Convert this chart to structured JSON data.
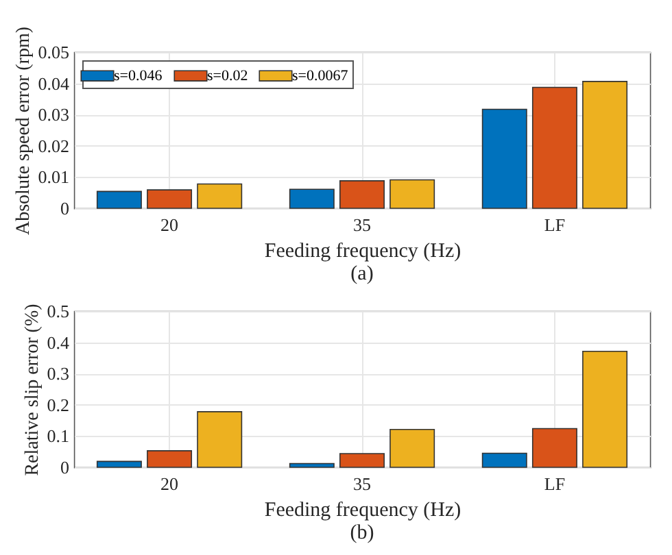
{
  "chart_data": [
    {
      "type": "bar",
      "xlabel": "Feeding frequency (Hz)",
      "ylabel": "Absolute speed error (rpm)",
      "categories": [
        "20",
        "35",
        "LF"
      ],
      "ylim": [
        0,
        0.05
      ],
      "yticks": [
        0,
        0.01,
        0.02,
        0.03,
        0.04,
        0.05
      ],
      "grid": true,
      "legend": "top left",
      "annotations": [
        "(a)"
      ],
      "series": [
        {
          "name": "s=0.046",
          "color": "#0072bd",
          "values": [
            0.0054,
            0.0061,
            0.0317
          ]
        },
        {
          "name": "s=0.02",
          "color": "#d95319",
          "values": [
            0.0059,
            0.0088,
            0.0387
          ]
        },
        {
          "name": "s=0.0067",
          "color": "#edb120",
          "values": [
            0.0078,
            0.0091,
            0.0406
          ]
        }
      ]
    },
    {
      "type": "bar",
      "xlabel": "Feeding frequency (Hz)",
      "ylabel": "Relative slip error (%)",
      "categories": [
        "20",
        "35",
        "LF"
      ],
      "ylim": [
        0,
        0.5
      ],
      "yticks": [
        0,
        0.1,
        0.2,
        0.3,
        0.4,
        0.5
      ],
      "grid": true,
      "legend": "top left",
      "annotations": [
        "(b)"
      ],
      "series": [
        {
          "name": "s=0.046",
          "color": "#0072bd",
          "values": [
            0.019,
            0.012,
            0.045
          ]
        },
        {
          "name": "s=0.02",
          "color": "#d95319",
          "values": [
            0.053,
            0.044,
            0.124
          ]
        },
        {
          "name": "s=0.0067",
          "color": "#edb120",
          "values": [
            0.178,
            0.121,
            0.371
          ]
        }
      ]
    }
  ]
}
